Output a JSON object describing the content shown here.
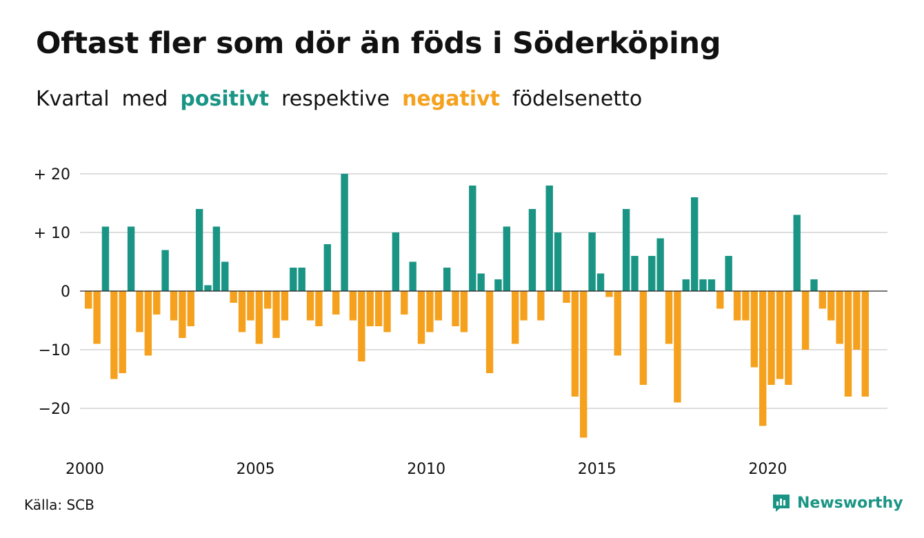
{
  "header": {
    "title": "Oftast fler som dör än föds i Söderköping",
    "subtitle": {
      "part1": "Kvartal",
      "part2": "med",
      "positive": "positivt",
      "part3": "respektive",
      "negative": "negativt",
      "part4": "födelsenetto"
    }
  },
  "footer": {
    "source": "Källa: SCB",
    "brand": "Newsworthy"
  },
  "colors": {
    "positive": "#1a9585",
    "negative": "#f5a11e",
    "grid": "#dddddd"
  },
  "chart_data": {
    "type": "bar",
    "start_year": 2000,
    "periods_per_year": 4,
    "values": [
      -3,
      -9,
      11,
      -15,
      -14,
      11,
      -7,
      -11,
      -4,
      7,
      -5,
      -8,
      -6,
      14,
      1,
      11,
      5,
      -2,
      -7,
      -5,
      -9,
      -3,
      -8,
      -5,
      4,
      4,
      -5,
      -6,
      8,
      -4,
      20,
      -5,
      -12,
      -6,
      -6,
      -7,
      10,
      -4,
      5,
      -9,
      -7,
      -5,
      4,
      -6,
      -7,
      18,
      3,
      -14,
      2,
      11,
      -9,
      -5,
      14,
      -5,
      18,
      10,
      -2,
      -18,
      -25,
      10,
      3,
      -1,
      -11,
      14,
      6,
      -16,
      6,
      9,
      -9,
      -19,
      2,
      16,
      2,
      2,
      -3,
      6,
      -5,
      -5,
      -13,
      -23,
      -16,
      -15,
      -16,
      13,
      -10,
      2,
      -3,
      -5,
      -9,
      -18,
      -10,
      -18
    ],
    "ylim": [
      -25,
      20
    ],
    "y_ticks": [
      {
        "value": 20,
        "label": "+ 20"
      },
      {
        "value": 10,
        "label": "+ 10"
      },
      {
        "value": 0,
        "label": "0"
      },
      {
        "value": -10,
        "label": "−10"
      },
      {
        "value": -20,
        "label": "−20"
      }
    ],
    "x_ticks": [
      "2000",
      "2005",
      "2010",
      "2015",
      "2020"
    ],
    "grid": true,
    "legend": "none"
  }
}
